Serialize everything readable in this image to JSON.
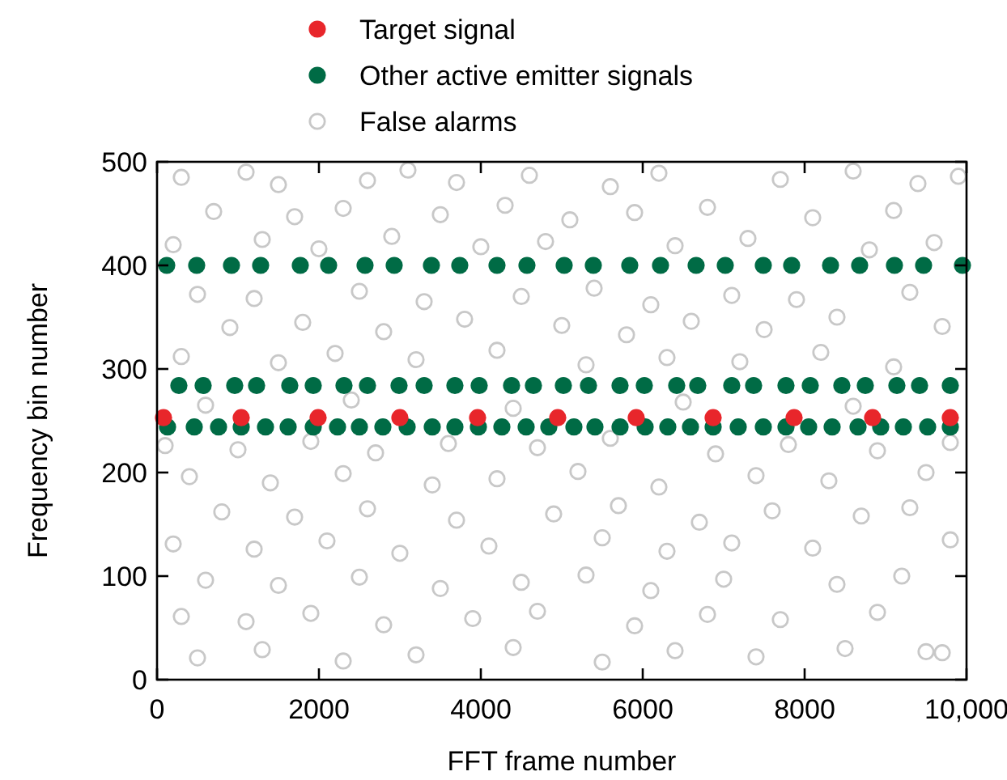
{
  "chart_data": {
    "type": "scatter",
    "xlabel": "FFT frame number",
    "ylabel": "Frequency bin number",
    "xlim": [
      0,
      10000
    ],
    "ylim": [
      0,
      500
    ],
    "xticks": [
      0,
      2000,
      4000,
      6000,
      8000,
      {
        "value": 10000,
        "label": "10,000"
      }
    ],
    "yticks": [
      0,
      100,
      200,
      300,
      400,
      500
    ],
    "legend": "top",
    "marker": "circle",
    "grid": false,
    "series": [
      {
        "name": "Target signal",
        "color": "#e8262b",
        "x": [
          80,
          1040,
          1990,
          3000,
          3960,
          4950,
          5920,
          6870,
          7870,
          8840,
          9800
        ],
        "values": [
          253,
          253,
          253,
          253,
          253,
          253,
          253,
          253,
          253,
          253,
          253
        ]
      },
      {
        "name": "Other active emitter signals",
        "color": "#006b45",
        "x": [
          120,
          490,
          920,
          1280,
          1770,
          2120,
          2570,
          2930,
          3390,
          3740,
          4200,
          4570,
          5030,
          5390,
          5840,
          6220,
          6660,
          7020,
          7490,
          7840,
          8320,
          8680,
          9110,
          9470,
          9950,
          270,
          570,
          960,
          1230,
          1640,
          1930,
          2310,
          2600,
          2990,
          3300,
          3680,
          3980,
          4380,
          4650,
          5020,
          5330,
          5720,
          6020,
          6420,
          6680,
          7100,
          7370,
          7770,
          8070,
          8460,
          8750,
          9140,
          9420,
          9800,
          130,
          460,
          760,
          1040,
          1340,
          1620,
          1930,
          2230,
          2500,
          2790,
          3090,
          3400,
          3680,
          3970,
          4260,
          4560,
          4840,
          5150,
          5410,
          5720,
          6030,
          6310,
          6590,
          6870,
          7180,
          7490,
          7770,
          8050,
          8340,
          8660,
          8940,
          9220,
          9520,
          9800
        ],
        "values": [
          400,
          400,
          400,
          400,
          400,
          400,
          400,
          400,
          400,
          400,
          400,
          400,
          400,
          400,
          400,
          400,
          400,
          400,
          400,
          400,
          400,
          400,
          400,
          400,
          400,
          284,
          284,
          284,
          284,
          284,
          284,
          284,
          284,
          284,
          284,
          284,
          284,
          284,
          284,
          284,
          284,
          284,
          284,
          284,
          284,
          284,
          284,
          284,
          284,
          284,
          284,
          284,
          284,
          284,
          244,
          244,
          244,
          244,
          244,
          244,
          244,
          244,
          244,
          244,
          244,
          244,
          244,
          244,
          244,
          244,
          244,
          244,
          244,
          244,
          244,
          244,
          244,
          244,
          244,
          244,
          244,
          244,
          244,
          244,
          244,
          244,
          244,
          244
        ]
      },
      {
        "name": "False alarms",
        "color": "#c8c8c8",
        "x": [
          300,
          1100,
          1500,
          2600,
          3100,
          3700,
          4600,
          5600,
          6200,
          7700,
          8600,
          9400,
          9900,
          700,
          1700,
          2300,
          3500,
          4300,
          5100,
          5900,
          6800,
          8100,
          9100,
          200,
          1300,
          2000,
          2900,
          4000,
          4800,
          6400,
          7300,
          8800,
          9600,
          500,
          1200,
          2500,
          3300,
          4500,
          5400,
          6100,
          7100,
          7900,
          9300,
          900,
          1800,
          2800,
          3800,
          5000,
          5800,
          6600,
          7500,
          8400,
          9700,
          300,
          1500,
          2200,
          3200,
          4200,
          5300,
          6300,
          7200,
          8200,
          9100,
          600,
          2400,
          4400,
          6500,
          8600,
          100,
          1000,
          1900,
          2700,
          3600,
          4700,
          5600,
          6900,
          7800,
          8900,
          9800,
          400,
          1400,
          2300,
          3400,
          4200,
          5200,
          6200,
          7400,
          8300,
          9500,
          800,
          1700,
          2600,
          3700,
          4900,
          5700,
          6700,
          7600,
          8700,
          9300,
          200,
          1200,
          2100,
          3000,
          4100,
          5500,
          6300,
          7100,
          8100,
          9800,
          600,
          1500,
          2500,
          3500,
          4500,
          5300,
          6100,
          7000,
          8400,
          9200,
          300,
          1100,
          1900,
          2800,
          3900,
          4700,
          5900,
          6800,
          7700,
          8900,
          9700,
          500,
          1300,
          2300,
          3200,
          4400,
          5500,
          6400,
          7400,
          8500,
          9500
        ],
        "values": [
          485,
          490,
          478,
          482,
          492,
          480,
          487,
          476,
          489,
          483,
          491,
          479,
          486,
          452,
          447,
          455,
          449,
          458,
          444,
          451,
          456,
          446,
          453,
          420,
          425,
          416,
          428,
          418,
          423,
          419,
          426,
          415,
          422,
          372,
          368,
          375,
          365,
          370,
          378,
          362,
          371,
          367,
          374,
          340,
          345,
          336,
          348,
          342,
          333,
          346,
          338,
          350,
          341,
          312,
          306,
          315,
          309,
          318,
          304,
          311,
          307,
          316,
          302,
          265,
          270,
          262,
          268,
          264,
          226,
          222,
          230,
          219,
          228,
          224,
          233,
          218,
          227,
          221,
          229,
          196,
          190,
          199,
          188,
          194,
          201,
          186,
          197,
          192,
          200,
          162,
          157,
          165,
          154,
          160,
          168,
          152,
          163,
          158,
          166,
          131,
          126,
          134,
          122,
          129,
          137,
          124,
          132,
          127,
          135,
          96,
          91,
          99,
          88,
          94,
          101,
          86,
          97,
          92,
          100,
          61,
          56,
          64,
          53,
          59,
          66,
          52,
          63,
          58,
          65,
          26,
          21,
          29,
          18,
          24,
          31,
          17,
          28,
          22,
          30,
          27
        ]
      }
    ]
  }
}
